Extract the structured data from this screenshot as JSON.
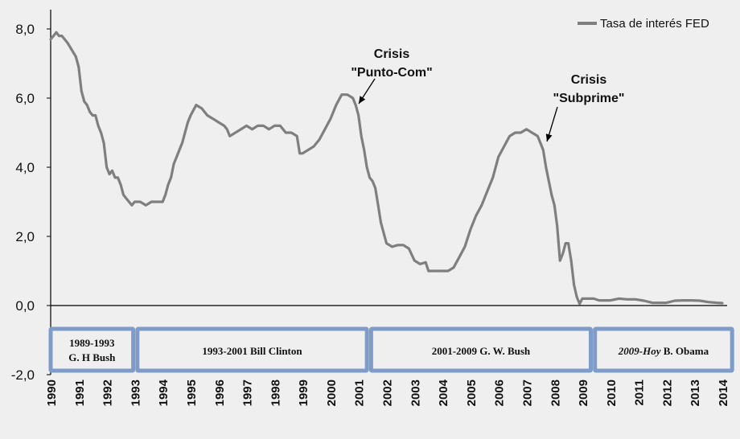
{
  "chart_data": {
    "type": "line",
    "title": "",
    "xlabel": "",
    "ylabel": "",
    "x_range": [
      1990,
      2014
    ],
    "ylim": [
      -2,
      8
    ],
    "y_ticks": [
      "8,0",
      "6,0",
      "4,0",
      "2,0",
      "0,0",
      "-2,0"
    ],
    "x_ticks": [
      "1990",
      "1991",
      "1992",
      "1993",
      "1994",
      "1995",
      "1996",
      "1997",
      "1998",
      "1999",
      "2000",
      "2001",
      "2002",
      "2003",
      "2004",
      "2005",
      "2006",
      "2007",
      "2008",
      "2009",
      "2010",
      "2011",
      "2012",
      "2013",
      "2014"
    ],
    "grid": false,
    "legend_position": "top-right",
    "series": [
      {
        "name": "Tasa de interés FED",
        "color": "#7f7f7f",
        "points": [
          [
            1990.0,
            7.7
          ],
          [
            1990.1,
            7.8
          ],
          [
            1990.2,
            7.9
          ],
          [
            1990.3,
            7.8
          ],
          [
            1990.4,
            7.8
          ],
          [
            1990.5,
            7.7
          ],
          [
            1990.6,
            7.6
          ],
          [
            1990.75,
            7.4
          ],
          [
            1990.9,
            7.2
          ],
          [
            1991.0,
            6.9
          ],
          [
            1991.1,
            6.2
          ],
          [
            1991.2,
            5.9
          ],
          [
            1991.3,
            5.8
          ],
          [
            1991.4,
            5.6
          ],
          [
            1991.5,
            5.5
          ],
          [
            1991.6,
            5.5
          ],
          [
            1991.7,
            5.2
          ],
          [
            1991.8,
            5.0
          ],
          [
            1991.9,
            4.7
          ],
          [
            1992.0,
            4.0
          ],
          [
            1992.1,
            3.8
          ],
          [
            1992.2,
            3.9
          ],
          [
            1992.3,
            3.7
          ],
          [
            1992.4,
            3.7
          ],
          [
            1992.5,
            3.5
          ],
          [
            1992.6,
            3.2
          ],
          [
            1992.7,
            3.1
          ],
          [
            1992.8,
            3.0
          ],
          [
            1992.9,
            2.9
          ],
          [
            1993.0,
            3.0
          ],
          [
            1993.2,
            3.0
          ],
          [
            1993.4,
            2.9
          ],
          [
            1993.6,
            3.0
          ],
          [
            1993.8,
            3.0
          ],
          [
            1994.0,
            3.0
          ],
          [
            1994.1,
            3.2
          ],
          [
            1994.2,
            3.5
          ],
          [
            1994.3,
            3.7
          ],
          [
            1994.4,
            4.1
          ],
          [
            1994.5,
            4.3
          ],
          [
            1994.6,
            4.5
          ],
          [
            1994.7,
            4.7
          ],
          [
            1994.8,
            5.0
          ],
          [
            1994.9,
            5.3
          ],
          [
            1995.0,
            5.5
          ],
          [
            1995.2,
            5.8
          ],
          [
            1995.4,
            5.7
          ],
          [
            1995.6,
            5.5
          ],
          [
            1995.8,
            5.4
          ],
          [
            1996.0,
            5.3
          ],
          [
            1996.2,
            5.2
          ],
          [
            1996.3,
            5.1
          ],
          [
            1996.4,
            4.9
          ],
          [
            1996.6,
            5.0
          ],
          [
            1996.8,
            5.1
          ],
          [
            1997.0,
            5.2
          ],
          [
            1997.2,
            5.1
          ],
          [
            1997.4,
            5.2
          ],
          [
            1997.6,
            5.2
          ],
          [
            1997.8,
            5.1
          ],
          [
            1998.0,
            5.2
          ],
          [
            1998.2,
            5.2
          ],
          [
            1998.4,
            5.0
          ],
          [
            1998.6,
            5.0
          ],
          [
            1998.8,
            4.9
          ],
          [
            1998.9,
            4.4
          ],
          [
            1999.0,
            4.4
          ],
          [
            1999.2,
            4.5
          ],
          [
            1999.4,
            4.6
          ],
          [
            1999.6,
            4.8
          ],
          [
            1999.8,
            5.1
          ],
          [
            2000.0,
            5.4
          ],
          [
            2000.2,
            5.8
          ],
          [
            2000.4,
            6.1
          ],
          [
            2000.6,
            6.1
          ],
          [
            2000.8,
            6.0
          ],
          [
            2000.9,
            5.8
          ],
          [
            2001.0,
            5.5
          ],
          [
            2001.1,
            4.9
          ],
          [
            2001.2,
            4.5
          ],
          [
            2001.3,
            4.0
          ],
          [
            2001.4,
            3.7
          ],
          [
            2001.5,
            3.6
          ],
          [
            2001.6,
            3.4
          ],
          [
            2001.7,
            2.9
          ],
          [
            2001.8,
            2.4
          ],
          [
            2001.9,
            2.1
          ],
          [
            2002.0,
            1.8
          ],
          [
            2002.2,
            1.7
          ],
          [
            2002.4,
            1.75
          ],
          [
            2002.6,
            1.75
          ],
          [
            2002.8,
            1.65
          ],
          [
            2003.0,
            1.3
          ],
          [
            2003.2,
            1.2
          ],
          [
            2003.4,
            1.25
          ],
          [
            2003.5,
            1.0
          ],
          [
            2003.6,
            1.0
          ],
          [
            2003.8,
            1.0
          ],
          [
            2004.0,
            1.0
          ],
          [
            2004.2,
            1.0
          ],
          [
            2004.4,
            1.1
          ],
          [
            2004.6,
            1.4
          ],
          [
            2004.8,
            1.7
          ],
          [
            2005.0,
            2.2
          ],
          [
            2005.2,
            2.6
          ],
          [
            2005.4,
            2.9
          ],
          [
            2005.6,
            3.3
          ],
          [
            2005.8,
            3.7
          ],
          [
            2006.0,
            4.3
          ],
          [
            2006.2,
            4.6
          ],
          [
            2006.4,
            4.9
          ],
          [
            2006.6,
            5.0
          ],
          [
            2006.8,
            5.0
          ],
          [
            2007.0,
            5.1
          ],
          [
            2007.2,
            5.0
          ],
          [
            2007.4,
            4.9
          ],
          [
            2007.5,
            4.7
          ],
          [
            2007.6,
            4.5
          ],
          [
            2007.7,
            4.0
          ],
          [
            2007.8,
            3.6
          ],
          [
            2007.9,
            3.2
          ],
          [
            2008.0,
            2.9
          ],
          [
            2008.1,
            2.3
          ],
          [
            2008.2,
            1.3
          ],
          [
            2008.3,
            1.5
          ],
          [
            2008.4,
            1.8
          ],
          [
            2008.5,
            1.8
          ],
          [
            2008.6,
            1.3
          ],
          [
            2008.7,
            0.6
          ],
          [
            2008.8,
            0.25
          ],
          [
            2008.9,
            0.05
          ],
          [
            2009.0,
            0.2
          ],
          [
            2009.2,
            0.2
          ],
          [
            2009.4,
            0.2
          ],
          [
            2009.6,
            0.15
          ],
          [
            2009.8,
            0.15
          ],
          [
            2010.0,
            0.15
          ],
          [
            2010.3,
            0.2
          ],
          [
            2010.6,
            0.18
          ],
          [
            2010.9,
            0.18
          ],
          [
            2011.2,
            0.14
          ],
          [
            2011.5,
            0.08
          ],
          [
            2011.8,
            0.08
          ],
          [
            2012.0,
            0.08
          ],
          [
            2012.3,
            0.14
          ],
          [
            2012.6,
            0.15
          ],
          [
            2012.9,
            0.15
          ],
          [
            2013.2,
            0.14
          ],
          [
            2013.5,
            0.1
          ],
          [
            2013.8,
            0.08
          ],
          [
            2014.0,
            0.07
          ]
        ]
      }
    ],
    "annotations": [
      {
        "lines": [
          "Crisis",
          "\"Punto-Com\""
        ]
      },
      {
        "lines": [
          "Crisis",
          "\"Subprime\""
        ]
      }
    ],
    "periods": [
      {
        "line1": "1989-1993",
        "line2": "G. H Bush"
      },
      {
        "line1": "1993-2001 Bill Clinton",
        "line2": ""
      },
      {
        "line1": "2001-2009 G. W. Bush",
        "line2": ""
      },
      {
        "line1_italic": "2009-Hoy",
        "line1": "B. Obama",
        "line2": ""
      }
    ]
  }
}
